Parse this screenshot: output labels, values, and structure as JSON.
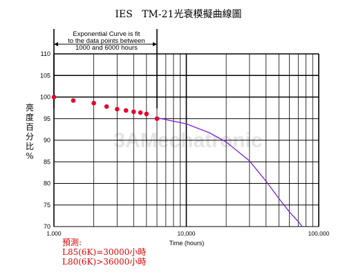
{
  "chart_data": {
    "type": "line",
    "title": "IES   TM-21光衰模擬曲線圖",
    "watermark": "3AMechatronic",
    "xlabel": "Time (hours)",
    "ylabel": "亮度百分比%",
    "xscale": "log",
    "xlim": [
      1000,
      100000
    ],
    "ylim": [
      70,
      110
    ],
    "xticks": [
      1000,
      10000,
      100000
    ],
    "xtick_labels": [
      "1,000",
      "10,000",
      "100,000"
    ],
    "yticks": [
      70,
      75,
      80,
      85,
      90,
      95,
      100,
      105,
      110
    ],
    "ytick_labels": [
      "70",
      "75",
      "80",
      "85",
      "90",
      "95",
      "100",
      "105",
      "110"
    ],
    "grid": true,
    "annotation": {
      "lines": [
        "Exponential Curve is fit",
        "to the data points between",
        "1000 and 6000 hours"
      ],
      "x_range": [
        1000,
        6000
      ]
    },
    "series": [
      {
        "kind": "points",
        "color": "#e8002a",
        "x": [
          1000,
          1400,
          2000,
          2500,
          3000,
          3500,
          4000,
          4500,
          5000,
          6000
        ],
        "y": [
          100.0,
          99.2,
          98.6,
          97.8,
          97.2,
          96.9,
          96.6,
          96.4,
          96.1,
          95.0
        ]
      },
      {
        "kind": "curve",
        "color": "#7b1fd6",
        "x": [
          6000,
          10000,
          15000,
          20000,
          30000,
          40000,
          50000,
          60000,
          70000,
          75000
        ],
        "y": [
          95.2,
          93.8,
          91.7,
          89.6,
          85.2,
          80.5,
          76.5,
          73.4,
          71.2,
          70.0
        ]
      }
    ]
  },
  "notes": {
    "heading": "預測:",
    "l85": "L85(6K)=30000小時",
    "l80": "L80(6K)>36000小時"
  }
}
